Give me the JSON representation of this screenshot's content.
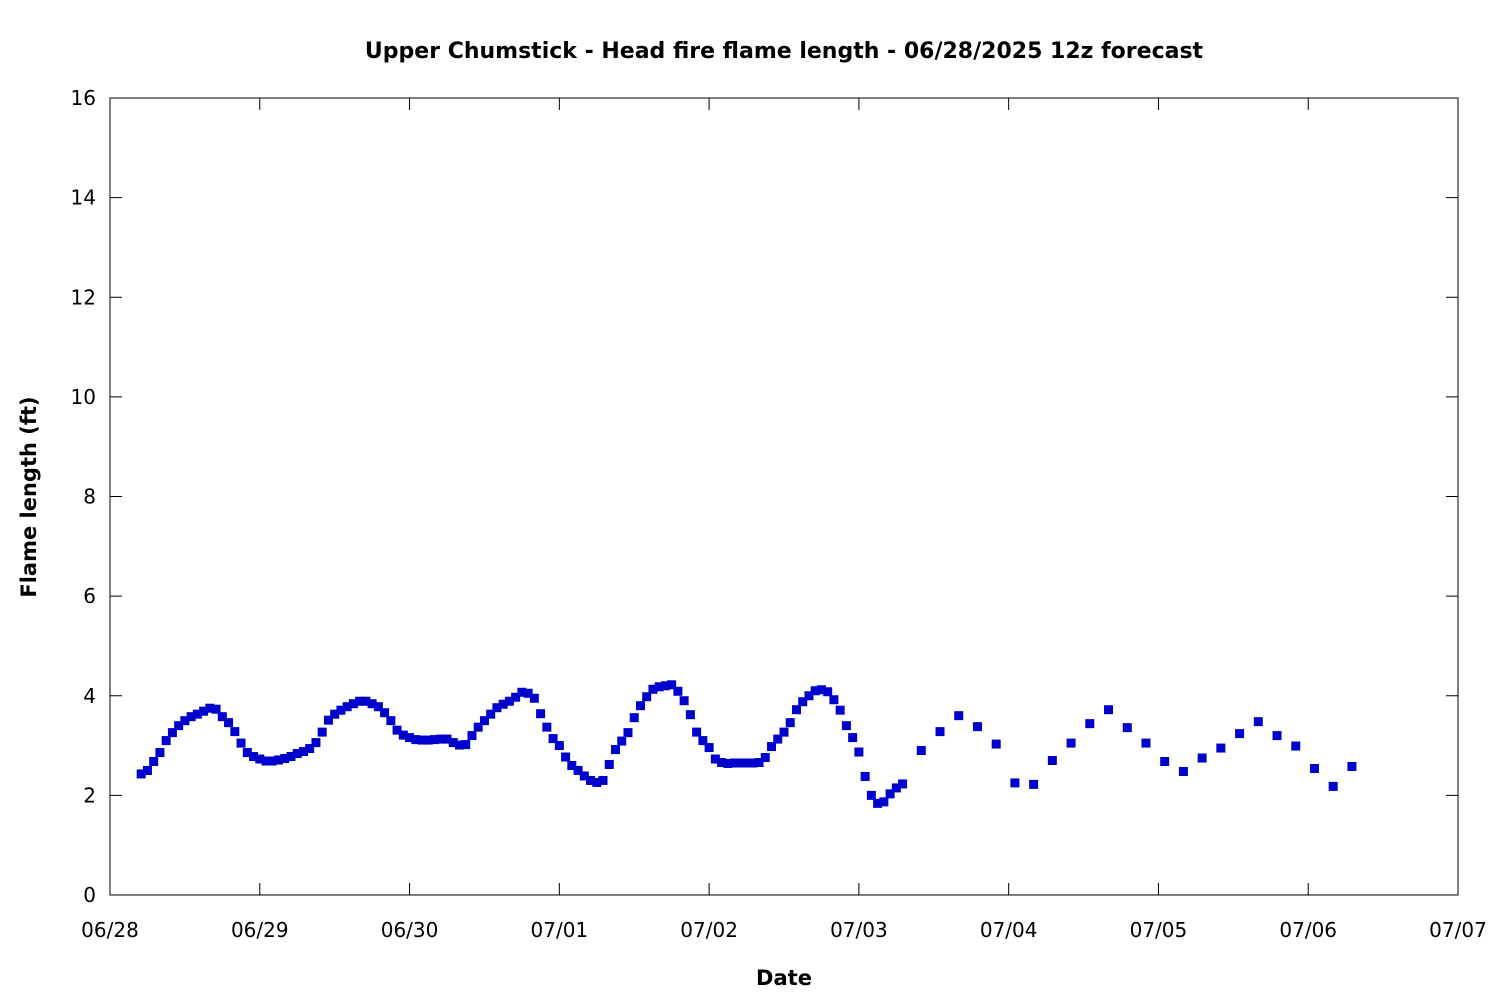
{
  "chart_data": {
    "type": "scatter",
    "title": "Upper Chumstick - Head fire flame length - 06/28/2025 12z forecast",
    "xlabel": "Date",
    "ylabel": "Flame length (ft)",
    "xlim": [
      "2025-06-28T00:00",
      "2025-07-07T00:00"
    ],
    "ylim": [
      0,
      16
    ],
    "x_ticks": [
      "06/28",
      "06/29",
      "06/30",
      "07/01",
      "07/02",
      "07/03",
      "07/04",
      "07/05",
      "07/06",
      "07/07"
    ],
    "y_ticks": [
      0,
      2,
      4,
      6,
      8,
      10,
      12,
      14,
      16
    ],
    "grid": false,
    "marker": "square",
    "color": "#0000cc",
    "series": [
      {
        "points": [
          [
            "2025-06-28T05:00",
            2.43
          ],
          [
            "2025-06-28T06:00",
            2.5
          ],
          [
            "2025-06-28T07:00",
            2.68
          ],
          [
            "2025-06-28T08:00",
            2.86
          ],
          [
            "2025-06-28T09:00",
            3.1
          ],
          [
            "2025-06-28T10:00",
            3.26
          ],
          [
            "2025-06-28T11:00",
            3.4
          ],
          [
            "2025-06-28T12:00",
            3.5
          ],
          [
            "2025-06-28T13:00",
            3.58
          ],
          [
            "2025-06-28T14:00",
            3.63
          ],
          [
            "2025-06-28T15:00",
            3.69
          ],
          [
            "2025-06-28T16:00",
            3.75
          ],
          [
            "2025-06-28T17:00",
            3.73
          ],
          [
            "2025-06-28T18:00",
            3.58
          ],
          [
            "2025-06-28T19:00",
            3.46
          ],
          [
            "2025-06-28T20:00",
            3.28
          ],
          [
            "2025-06-28T21:00",
            3.05
          ],
          [
            "2025-06-28T22:00",
            2.86
          ],
          [
            "2025-06-28T23:00",
            2.78
          ],
          [
            "2025-06-29T00:00",
            2.73
          ],
          [
            "2025-06-29T01:00",
            2.69
          ],
          [
            "2025-06-29T02:00",
            2.69
          ],
          [
            "2025-06-29T03:00",
            2.71
          ],
          [
            "2025-06-29T04:00",
            2.74
          ],
          [
            "2025-06-29T05:00",
            2.78
          ],
          [
            "2025-06-29T06:00",
            2.84
          ],
          [
            "2025-06-29T07:00",
            2.88
          ],
          [
            "2025-06-29T08:00",
            2.94
          ],
          [
            "2025-06-29T09:00",
            3.06
          ],
          [
            "2025-06-29T10:00",
            3.27
          ],
          [
            "2025-06-29T11:00",
            3.51
          ],
          [
            "2025-06-29T12:00",
            3.63
          ],
          [
            "2025-06-29T13:00",
            3.71
          ],
          [
            "2025-06-29T14:00",
            3.78
          ],
          [
            "2025-06-29T15:00",
            3.84
          ],
          [
            "2025-06-29T16:00",
            3.89
          ],
          [
            "2025-06-29T17:00",
            3.89
          ],
          [
            "2025-06-29T18:00",
            3.84
          ],
          [
            "2025-06-29T19:00",
            3.78
          ],
          [
            "2025-06-29T20:00",
            3.66
          ],
          [
            "2025-06-29T21:00",
            3.5
          ],
          [
            "2025-06-29T22:00",
            3.31
          ],
          [
            "2025-06-29T23:00",
            3.21
          ],
          [
            "2025-06-30T00:00",
            3.16
          ],
          [
            "2025-06-30T01:00",
            3.12
          ],
          [
            "2025-06-30T02:00",
            3.11
          ],
          [
            "2025-06-30T03:00",
            3.11
          ],
          [
            "2025-06-30T04:00",
            3.12
          ],
          [
            "2025-06-30T05:00",
            3.13
          ],
          [
            "2025-06-30T06:00",
            3.13
          ],
          [
            "2025-06-30T07:00",
            3.06
          ],
          [
            "2025-06-30T08:00",
            3.01
          ],
          [
            "2025-06-30T09:00",
            3.02
          ],
          [
            "2025-06-30T10:00",
            3.2
          ],
          [
            "2025-06-30T11:00",
            3.37
          ],
          [
            "2025-06-30T12:00",
            3.5
          ],
          [
            "2025-06-30T13:00",
            3.63
          ],
          [
            "2025-06-30T14:00",
            3.76
          ],
          [
            "2025-06-30T15:00",
            3.83
          ],
          [
            "2025-06-30T16:00",
            3.89
          ],
          [
            "2025-06-30T17:00",
            3.97
          ],
          [
            "2025-06-30T18:00",
            4.07
          ],
          [
            "2025-06-30T19:00",
            4.05
          ],
          [
            "2025-06-30T20:00",
            3.95
          ],
          [
            "2025-06-30T21:00",
            3.64
          ],
          [
            "2025-06-30T22:00",
            3.37
          ],
          [
            "2025-06-30T23:00",
            3.14
          ],
          [
            "2025-07-01T00:00",
            3.0
          ],
          [
            "2025-07-01T01:00",
            2.77
          ],
          [
            "2025-07-01T02:00",
            2.6
          ],
          [
            "2025-07-01T03:00",
            2.5
          ],
          [
            "2025-07-01T04:00",
            2.39
          ],
          [
            "2025-07-01T05:00",
            2.3
          ],
          [
            "2025-07-01T06:00",
            2.26
          ],
          [
            "2025-07-01T07:00",
            2.3
          ],
          [
            "2025-07-01T08:00",
            2.62
          ],
          [
            "2025-07-01T09:00",
            2.92
          ],
          [
            "2025-07-01T10:00",
            3.09
          ],
          [
            "2025-07-01T11:00",
            3.26
          ],
          [
            "2025-07-01T12:00",
            3.56
          ],
          [
            "2025-07-01T13:00",
            3.8
          ],
          [
            "2025-07-01T14:00",
            3.98
          ],
          [
            "2025-07-01T15:00",
            4.13
          ],
          [
            "2025-07-01T16:00",
            4.18
          ],
          [
            "2025-07-01T17:00",
            4.2
          ],
          [
            "2025-07-01T18:00",
            4.22
          ],
          [
            "2025-07-01T19:00",
            4.09
          ],
          [
            "2025-07-01T20:00",
            3.9
          ],
          [
            "2025-07-01T21:00",
            3.62
          ],
          [
            "2025-07-01T22:00",
            3.27
          ],
          [
            "2025-07-01T23:00",
            3.1
          ],
          [
            "2025-07-02T00:00",
            2.96
          ],
          [
            "2025-07-02T01:00",
            2.73
          ],
          [
            "2025-07-02T02:00",
            2.66
          ],
          [
            "2025-07-02T03:00",
            2.64
          ],
          [
            "2025-07-02T04:00",
            2.65
          ],
          [
            "2025-07-02T05:00",
            2.65
          ],
          [
            "2025-07-02T06:00",
            2.65
          ],
          [
            "2025-07-02T07:00",
            2.65
          ],
          [
            "2025-07-02T08:00",
            2.66
          ],
          [
            "2025-07-02T09:00",
            2.76
          ],
          [
            "2025-07-02T10:00",
            2.98
          ],
          [
            "2025-07-02T11:00",
            3.13
          ],
          [
            "2025-07-02T12:00",
            3.27
          ],
          [
            "2025-07-02T13:00",
            3.46
          ],
          [
            "2025-07-02T14:00",
            3.72
          ],
          [
            "2025-07-02T15:00",
            3.88
          ],
          [
            "2025-07-02T16:00",
            4.0
          ],
          [
            "2025-07-02T17:00",
            4.1
          ],
          [
            "2025-07-02T18:00",
            4.12
          ],
          [
            "2025-07-02T19:00",
            4.08
          ],
          [
            "2025-07-02T20:00",
            3.92
          ],
          [
            "2025-07-02T21:00",
            3.71
          ],
          [
            "2025-07-02T22:00",
            3.4
          ],
          [
            "2025-07-02T23:00",
            3.16
          ],
          [
            "2025-07-03T00:00",
            2.87
          ],
          [
            "2025-07-03T01:00",
            2.38
          ],
          [
            "2025-07-03T02:00",
            2.0
          ],
          [
            "2025-07-03T03:00",
            1.84
          ],
          [
            "2025-07-03T04:00",
            1.87
          ],
          [
            "2025-07-03T05:00",
            2.03
          ],
          [
            "2025-07-03T06:00",
            2.15
          ],
          [
            "2025-07-03T07:00",
            2.23
          ],
          [
            "2025-07-03T10:00",
            2.9
          ],
          [
            "2025-07-03T13:00",
            3.28
          ],
          [
            "2025-07-03T16:00",
            3.6
          ],
          [
            "2025-07-03T19:00",
            3.38
          ],
          [
            "2025-07-03T22:00",
            3.03
          ],
          [
            "2025-07-04T01:00",
            2.25
          ],
          [
            "2025-07-04T04:00",
            2.22
          ],
          [
            "2025-07-04T07:00",
            2.7
          ],
          [
            "2025-07-04T10:00",
            3.05
          ],
          [
            "2025-07-04T13:00",
            3.44
          ],
          [
            "2025-07-04T16:00",
            3.72
          ],
          [
            "2025-07-04T19:00",
            3.36
          ],
          [
            "2025-07-04T22:00",
            3.05
          ],
          [
            "2025-07-05T01:00",
            2.68
          ],
          [
            "2025-07-05T04:00",
            2.48
          ],
          [
            "2025-07-05T07:00",
            2.75
          ],
          [
            "2025-07-05T10:00",
            2.95
          ],
          [
            "2025-07-05T13:00",
            3.24
          ],
          [
            "2025-07-05T16:00",
            3.48
          ],
          [
            "2025-07-05T19:00",
            3.2
          ],
          [
            "2025-07-05T22:00",
            2.99
          ],
          [
            "2025-07-06T01:00",
            2.54
          ],
          [
            "2025-07-06T04:00",
            2.18
          ],
          [
            "2025-07-06T07:00",
            2.58
          ]
        ]
      }
    ]
  }
}
